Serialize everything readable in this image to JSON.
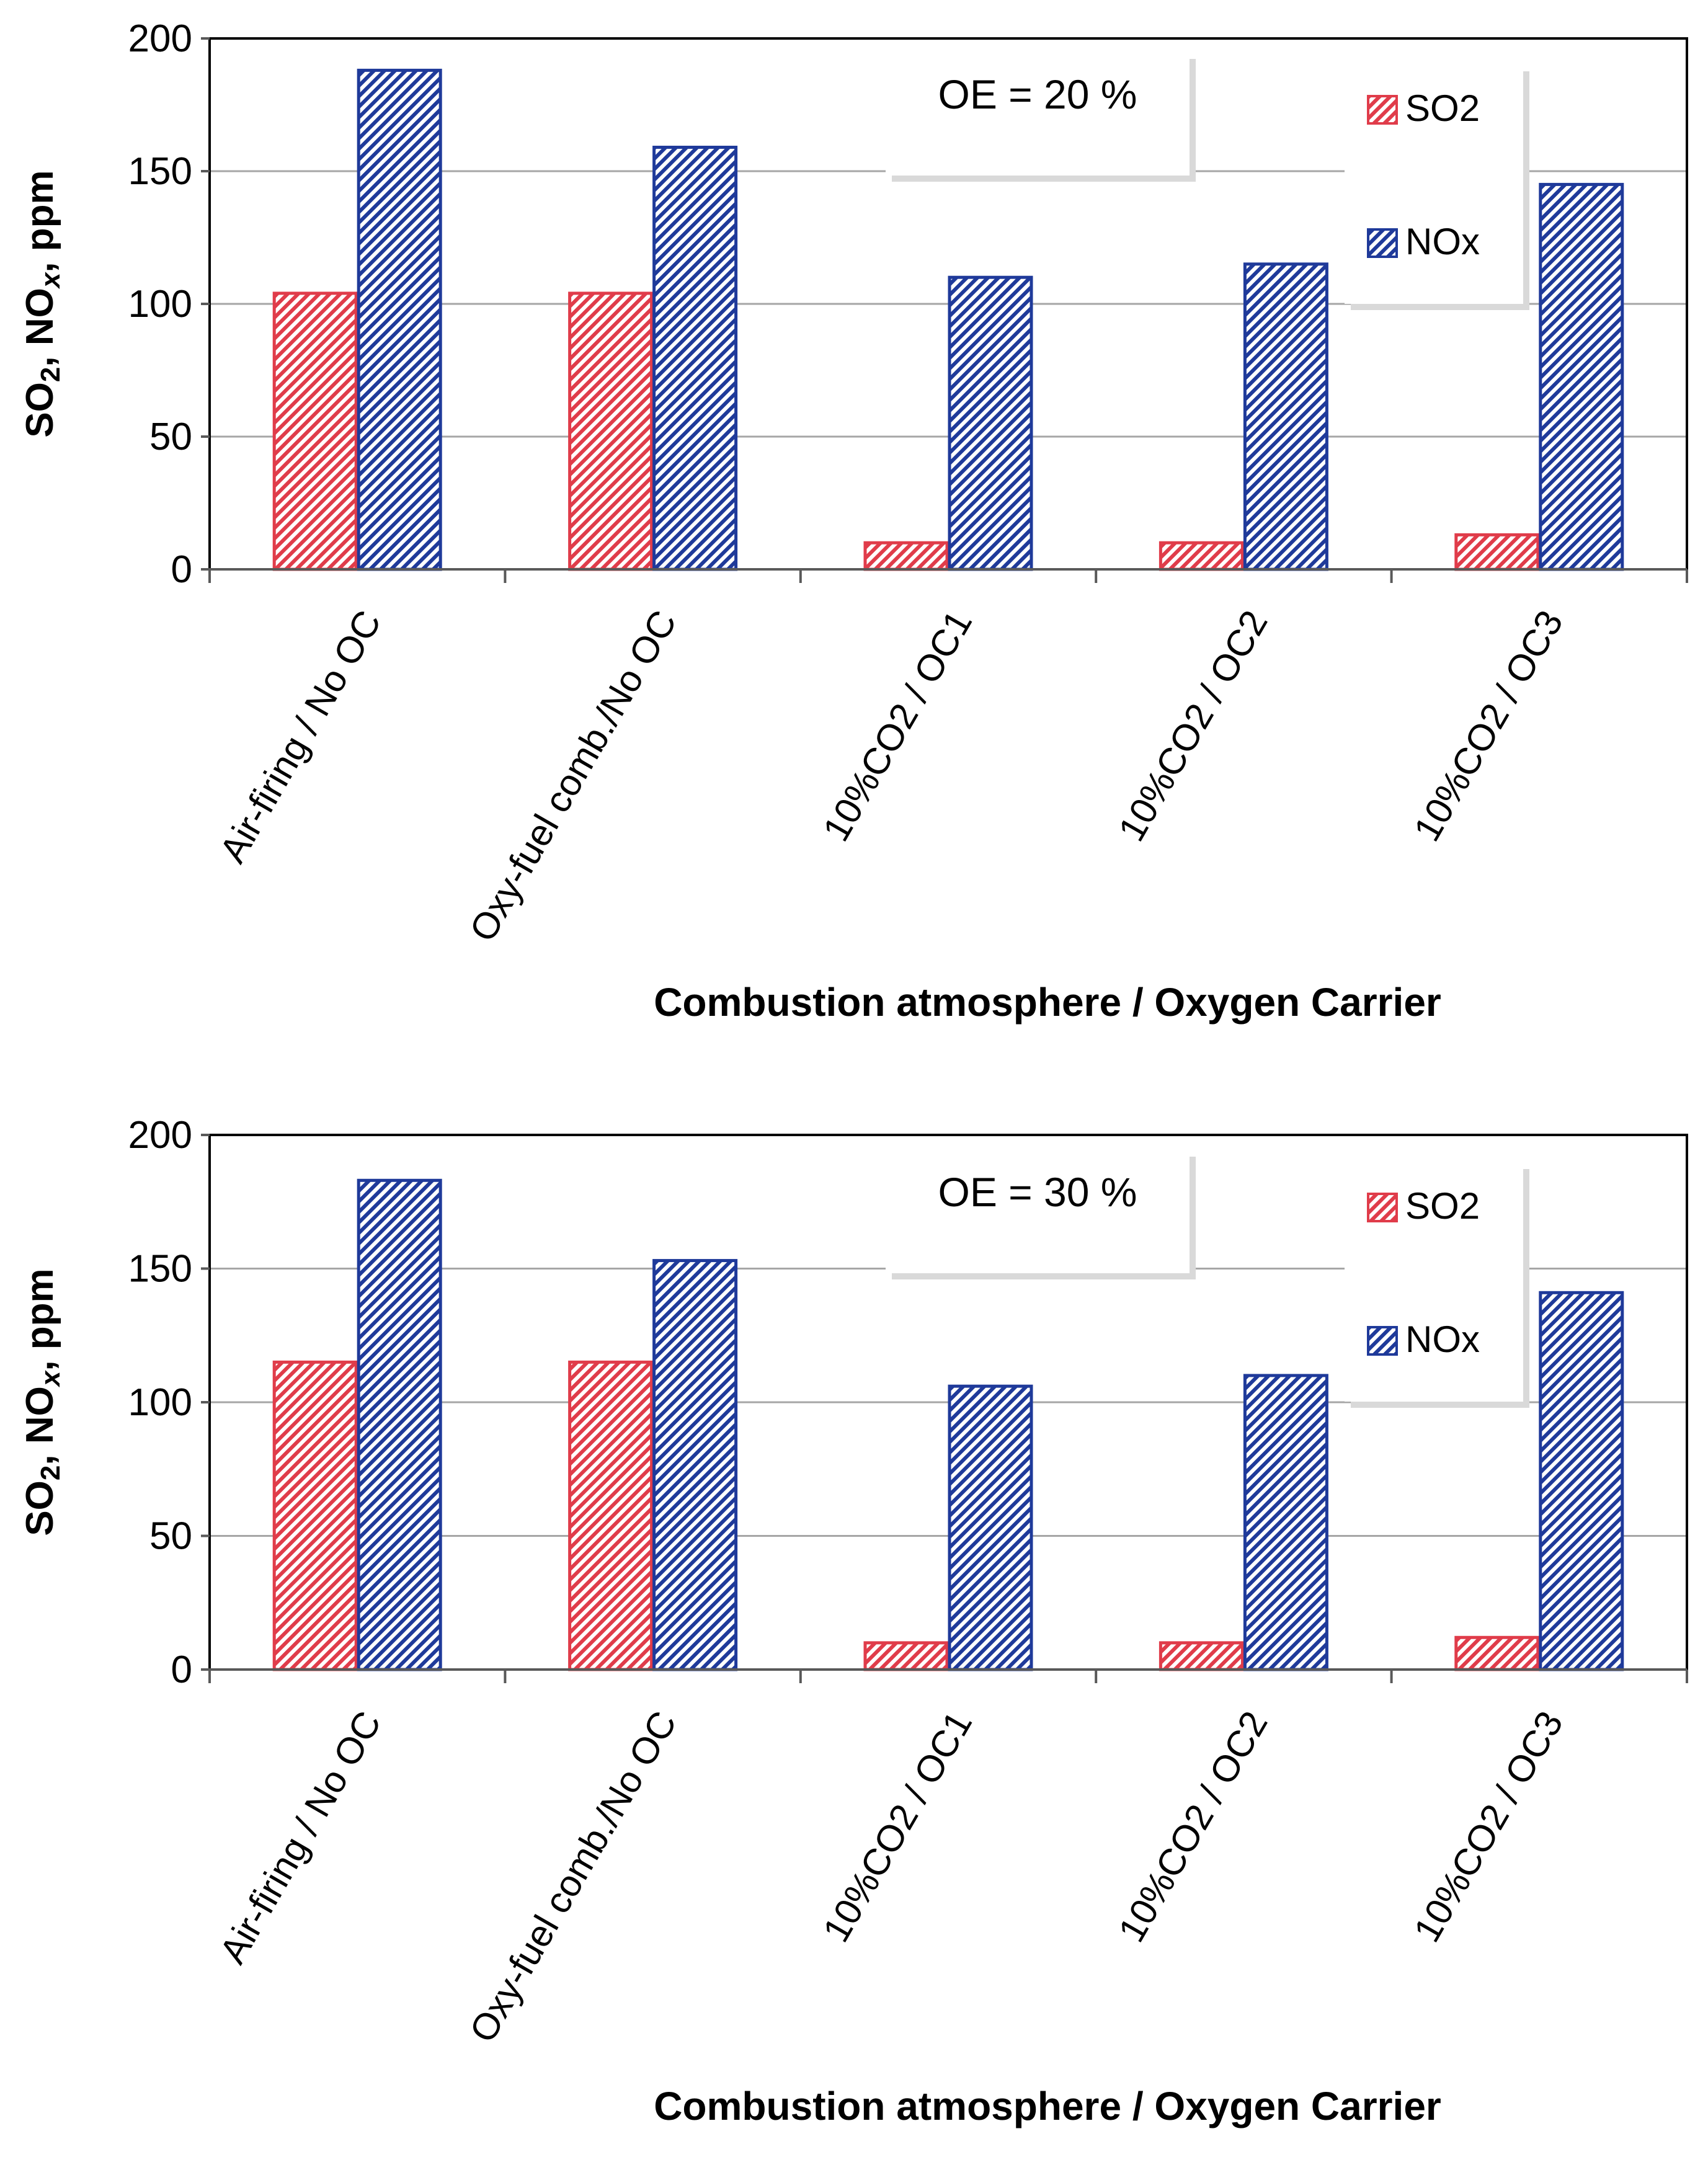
{
  "colors": {
    "so2": "#e03c4a",
    "nox": "#1f3a9a",
    "grid": "#a6a6a6"
  },
  "chart_data": [
    {
      "type": "bar",
      "annotation": "OE = 20 %",
      "categories": [
        "Air-firing / No OC",
        "Oxy-fuel comb./No OC",
        "10%CO2 / OC1",
        "10%CO2 / OC2",
        "10%CO2 / OC3"
      ],
      "series": [
        {
          "name": "SO2",
          "values": [
            104,
            104,
            10,
            10,
            13
          ]
        },
        {
          "name": "NOx",
          "values": [
            188,
            159,
            110,
            115,
            145
          ]
        }
      ],
      "yticks": [
        "0",
        "50",
        "100",
        "150",
        "200"
      ],
      "ylim": [
        0,
        200
      ],
      "ylabel": {
        "pre": "SO",
        "sub1": "2",
        "mid": ", NO",
        "sub2": "x",
        "post": ", ppm"
      },
      "xlabel": "Combustion atmosphere / Oxygen Carrier",
      "legend": "top-right"
    },
    {
      "type": "bar",
      "annotation": "OE = 30 %",
      "categories": [
        "Air-firing / No OC",
        "Oxy-fuel comb./No OC",
        "10%CO2 / OC1",
        "10%CO2 / OC2",
        "10%CO2 / OC3"
      ],
      "series": [
        {
          "name": "SO2",
          "values": [
            115,
            115,
            10,
            10,
            12
          ]
        },
        {
          "name": "NOx",
          "values": [
            183,
            153,
            106,
            110,
            141
          ]
        }
      ],
      "yticks": [
        "0",
        "50",
        "100",
        "150",
        "200"
      ],
      "ylim": [
        0,
        200
      ],
      "ylabel": {
        "pre": "SO",
        "sub1": "2",
        "mid": ", NO",
        "sub2": "x",
        "post": ", ppm"
      },
      "xlabel": "Combustion atmosphere / Oxygen Carrier",
      "legend": "top-right"
    }
  ]
}
